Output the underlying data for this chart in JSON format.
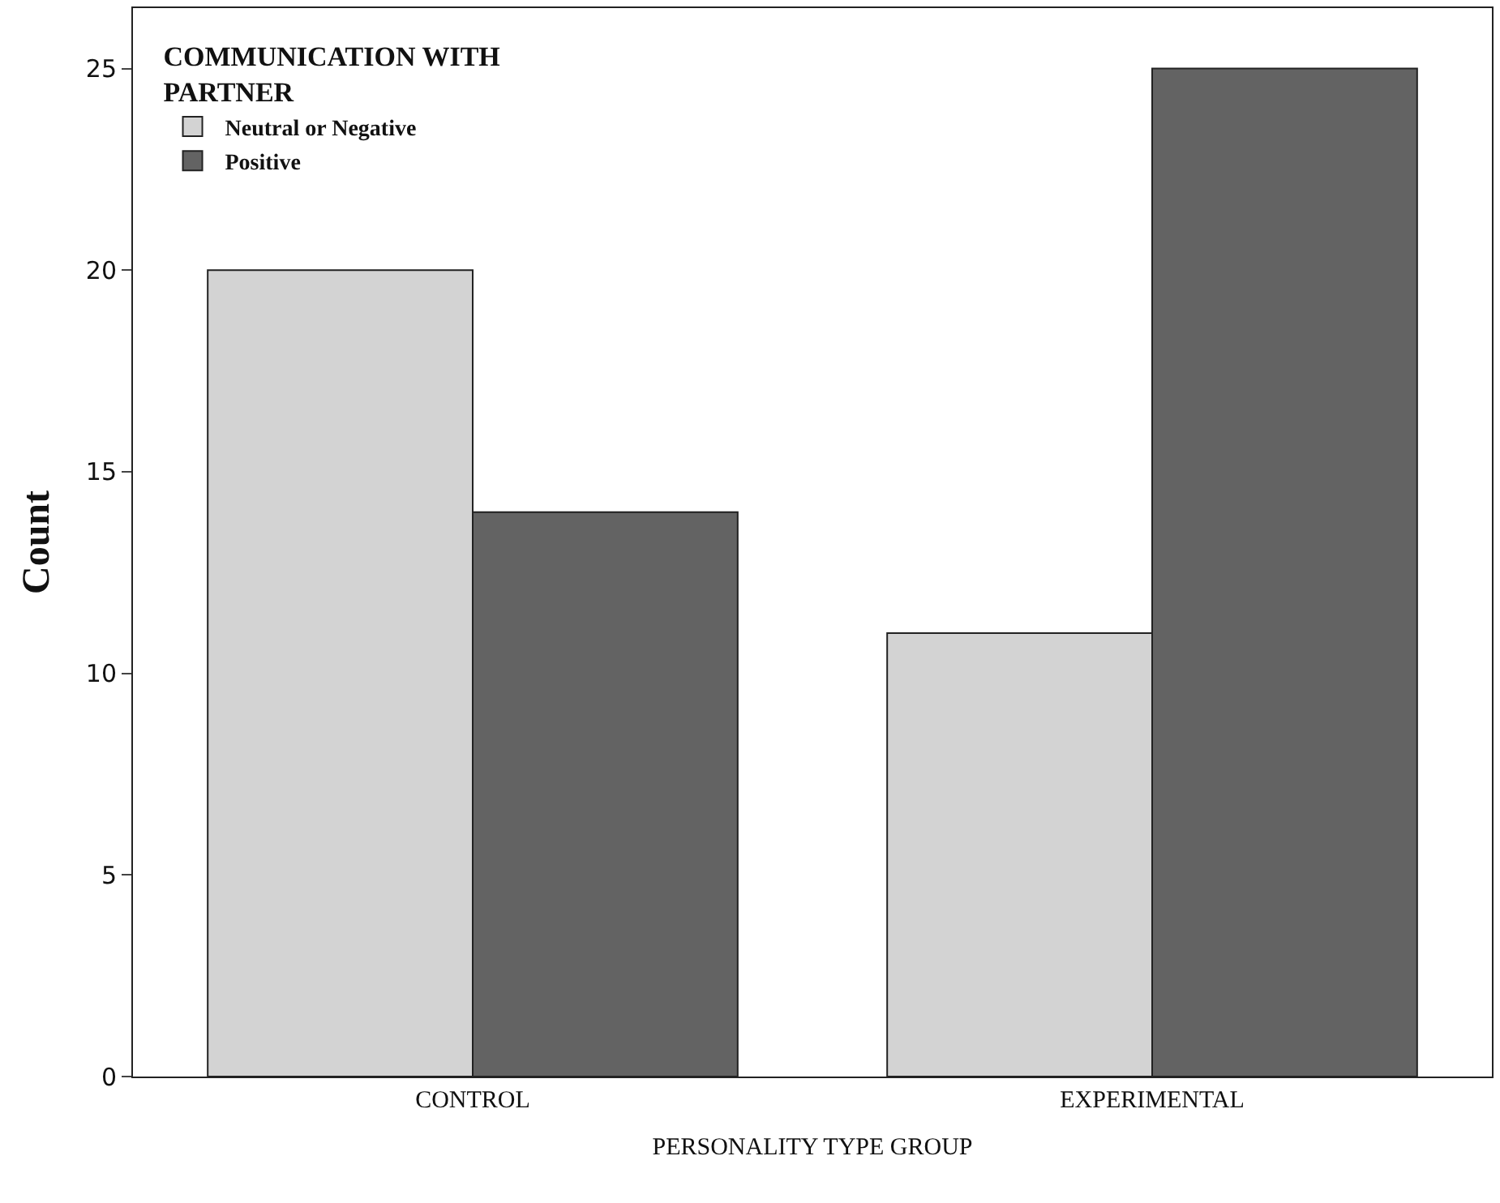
{
  "chart_data": {
    "type": "bar",
    "xlabel": "PERSONALITY TYPE GROUP",
    "ylabel": "Count",
    "legend_title": "COMMUNICATION WITH PARTNER",
    "categories": [
      "CONTROL",
      "EXPERIMENTAL"
    ],
    "series": [
      {
        "name": "Neutral or Negative",
        "color": "#d3d3d3",
        "values": [
          20,
          11
        ]
      },
      {
        "name": "Positive",
        "color": "#636363",
        "values": [
          14,
          25
        ]
      }
    ],
    "ylim": [
      0,
      26.5
    ],
    "yticks": [
      0,
      5,
      10,
      15,
      20,
      25
    ],
    "legend": "top left"
  }
}
